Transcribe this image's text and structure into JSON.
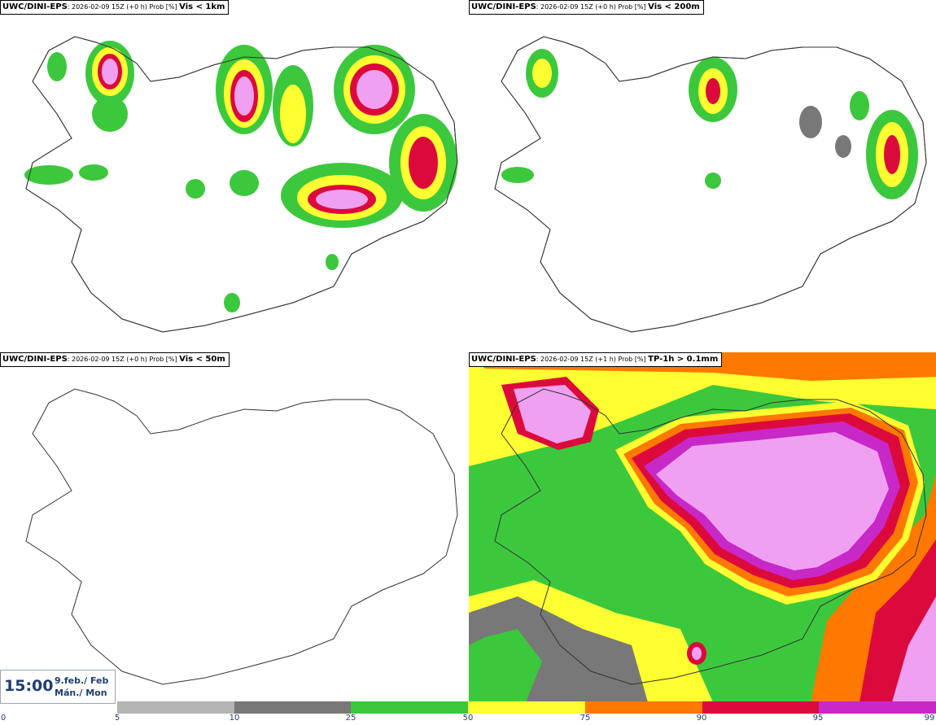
{
  "panels": [
    {
      "model": "UWC/DINI-EPS",
      "run": ": 2026-02-09 15Z (+0 h) Prob [%] ",
      "param": "Vis < 1km"
    },
    {
      "model": "UWC/DINI-EPS",
      "run": ": 2026-02-09 15Z (+0 h) Prob [%] ",
      "param": "Vis < 200m"
    },
    {
      "model": "UWC/DINI-EPS",
      "run": ": 2026-02-09 15Z (+0 h) Prob [%] ",
      "param": "Vis < 50m"
    },
    {
      "model": "UWC/DINI-EPS",
      "run": ": 2026-02-09 15Z (+1 h) Prob [%] ",
      "param": "TP-1h > 0.1mm"
    }
  ],
  "time": {
    "clock": "15:00",
    "date_line1": "9.feb./ Feb",
    "date_line2": "Mán./ Mon"
  },
  "legend": {
    "ticks": [
      "0",
      "5",
      "10",
      "25",
      "50",
      "75",
      "90",
      "95",
      "99"
    ],
    "colors": [
      "#b4b4b4",
      "#787878",
      "#3cc83c",
      "#ffff32",
      "#ff7800",
      "#dc0a3c",
      "#c828c8",
      "#f0a0f0"
    ]
  }
}
